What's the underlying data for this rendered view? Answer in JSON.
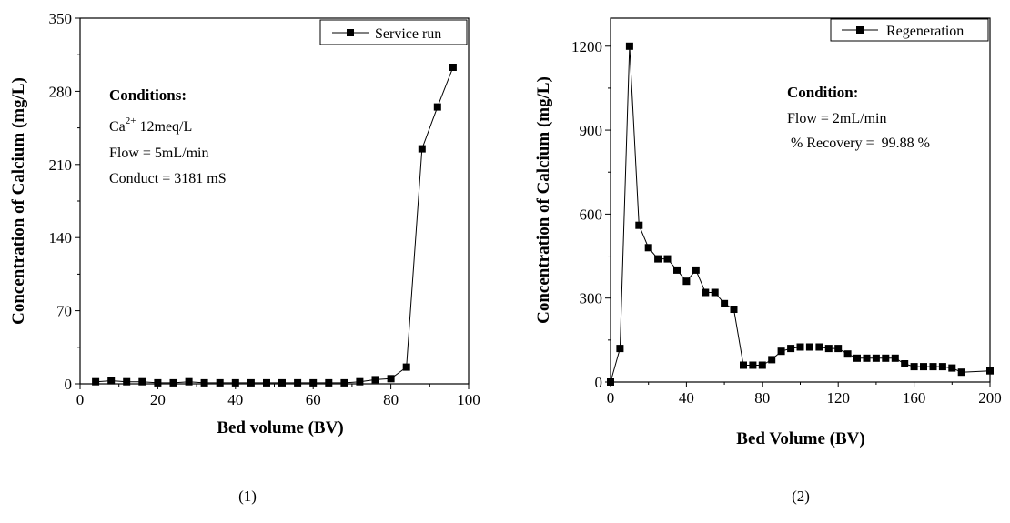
{
  "chart_data": [
    {
      "type": "line",
      "caption": "(1)",
      "xlabel": "Bed volume (BV)",
      "ylabel": "Concentration of Calcium (mg/L)",
      "xlim": [
        0,
        100
      ],
      "ylim": [
        0,
        350
      ],
      "xticks": [
        0,
        20,
        40,
        60,
        80,
        100
      ],
      "yticks": [
        0,
        70,
        140,
        210,
        280,
        350
      ],
      "grid": false,
      "legend_position": "top-right",
      "series": [
        {
          "name": "Service run",
          "marker": "square",
          "x": [
            4,
            8,
            12,
            16,
            20,
            24,
            28,
            32,
            36,
            40,
            44,
            48,
            52,
            56,
            60,
            64,
            68,
            72,
            76,
            80,
            84,
            88,
            92,
            96
          ],
          "y": [
            2,
            3,
            2,
            2,
            1,
            1,
            2,
            1,
            1,
            1,
            1,
            1,
            1,
            1,
            1,
            1,
            1,
            2,
            4,
            5,
            16,
            225,
            265,
            303
          ]
        }
      ],
      "annotations": {
        "heading": "Conditions:",
        "ca_base": "Ca",
        "ca_sup": "2+",
        "ca_rest": " 12meq/L",
        "line2": "Flow = 5mL/min",
        "line3": "Conduct = 3181 mS"
      }
    },
    {
      "type": "line",
      "caption": "(2)",
      "xlabel": "Bed Volume (BV)",
      "ylabel": "Concentration of Calcium (mg/L)",
      "xlim": [
        0,
        200
      ],
      "ylim": [
        0,
        1300
      ],
      "xticks": [
        0,
        40,
        80,
        120,
        160,
        200
      ],
      "yticks": [
        0,
        300,
        600,
        900,
        1200
      ],
      "grid": false,
      "legend_position": "top-right",
      "series": [
        {
          "name": "Regeneration",
          "marker": "square",
          "x": [
            0,
            5,
            10,
            15,
            20,
            25,
            30,
            35,
            40,
            45,
            50,
            55,
            60,
            65,
            70,
            75,
            80,
            85,
            90,
            95,
            100,
            105,
            110,
            115,
            120,
            125,
            130,
            135,
            140,
            145,
            150,
            155,
            160,
            165,
            170,
            175,
            180,
            185,
            200
          ],
          "y": [
            0,
            120,
            1200,
            560,
            480,
            440,
            440,
            400,
            360,
            400,
            320,
            320,
            280,
            260,
            60,
            60,
            60,
            80,
            110,
            120,
            125,
            125,
            125,
            120,
            120,
            100,
            85,
            85,
            85,
            85,
            85,
            65,
            55,
            55,
            55,
            55,
            50,
            35,
            40
          ]
        }
      ],
      "annotations": {
        "heading": "Condition:",
        "line1": "Flow = 2mL/min",
        "line2": " % Recovery =  99.88 %"
      }
    }
  ]
}
